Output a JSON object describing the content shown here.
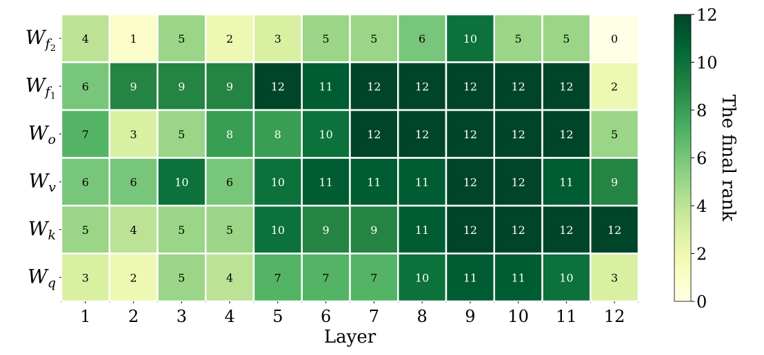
{
  "chart_data": {
    "type": "heatmap",
    "xlabel": "Layer",
    "x": [
      "1",
      "2",
      "3",
      "4",
      "5",
      "6",
      "7",
      "8",
      "9",
      "10",
      "11",
      "12"
    ],
    "y": [
      {
        "main": "W",
        "sub": "f",
        "subsub": "2"
      },
      {
        "main": "W",
        "sub": "f",
        "subsub": "1"
      },
      {
        "main": "W",
        "sub": "o",
        "subsub": ""
      },
      {
        "main": "W",
        "sub": "v",
        "subsub": ""
      },
      {
        "main": "W",
        "sub": "k",
        "subsub": ""
      },
      {
        "main": "W",
        "sub": "q",
        "subsub": ""
      }
    ],
    "values": [
      [
        4,
        1,
        5,
        2,
        3,
        5,
        5,
        6,
        10,
        5,
        5,
        0
      ],
      [
        6,
        9,
        9,
        9,
        12,
        11,
        12,
        12,
        12,
        12,
        12,
        2
      ],
      [
        7,
        3,
        5,
        8,
        8,
        10,
        12,
        12,
        12,
        12,
        12,
        5
      ],
      [
        6,
        6,
        10,
        6,
        10,
        11,
        11,
        11,
        12,
        12,
        11,
        9
      ],
      [
        5,
        4,
        5,
        5,
        10,
        9,
        9,
        11,
        12,
        12,
        12,
        12
      ],
      [
        3,
        2,
        5,
        4,
        7,
        7,
        7,
        10,
        11,
        11,
        10,
        3
      ]
    ],
    "vmin": 0,
    "vmax": 12,
    "colormap": "YlGn",
    "colorbar": {
      "label": "The final rank",
      "ticks": [
        "0",
        "2",
        "4",
        "6",
        "8",
        "10",
        "12"
      ]
    }
  }
}
